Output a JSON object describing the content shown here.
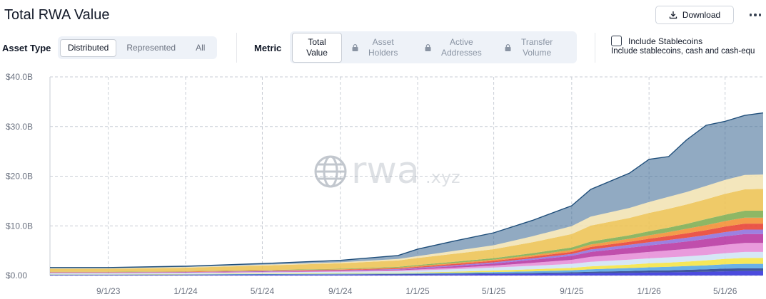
{
  "header": {
    "title": "Total RWA Value",
    "download_label": "Download"
  },
  "asset_type": {
    "label": "Asset Type",
    "options": [
      "Distributed",
      "Represented",
      "All"
    ],
    "selected": "Distributed"
  },
  "metric": {
    "label": "Metric",
    "options": [
      {
        "line1": "Total",
        "line2": "Value",
        "locked": false
      },
      {
        "line1": "Asset",
        "line2": "Holders",
        "locked": true
      },
      {
        "line1": "Active",
        "line2": "Addresses",
        "locked": true
      },
      {
        "line1": "Transfer",
        "line2": "Volume",
        "locked": true
      }
    ],
    "selected": "Total Value"
  },
  "stablecoins": {
    "label": "Include Stablecoins",
    "description": "Include stablecoins, cash and cash-equ",
    "checked": false
  },
  "watermark": {
    "text": "rwa",
    "suffix": ".xyz"
  },
  "chart_data": {
    "type": "area",
    "stacked": true,
    "ylim": [
      0,
      40
    ],
    "y_ticks": [
      {
        "value": 0,
        "label": "$0.00"
      },
      {
        "value": 10,
        "label": "$10.0B"
      },
      {
        "value": 20,
        "label": "$20.0B"
      },
      {
        "value": 30,
        "label": "$30.0B"
      },
      {
        "value": 40,
        "label": "$40.0B"
      }
    ],
    "xlim": [
      "2023-06-01",
      "2026-06-30"
    ],
    "x_ticks": [
      {
        "date": "2023-09-01",
        "label": "9/1/23"
      },
      {
        "date": "2024-01-01",
        "label": "1/1/24"
      },
      {
        "date": "2024-05-01",
        "label": "5/1/24"
      },
      {
        "date": "2024-09-01",
        "label": "9/1/24"
      },
      {
        "date": "2025-01-01",
        "label": "1/1/25"
      },
      {
        "date": "2025-05-01",
        "label": "5/1/25"
      },
      {
        "date": "2025-09-01",
        "label": "9/1/25"
      },
      {
        "date": "2026-01-01",
        "label": "1/1/26"
      },
      {
        "date": "2026-05-01",
        "label": "5/1/26"
      }
    ],
    "grid": true,
    "x": [
      "2023-06-01",
      "2023-09-01",
      "2024-01-01",
      "2024-05-01",
      "2024-09-01",
      "2024-12-01",
      "2025-01-01",
      "2025-03-01",
      "2025-05-01",
      "2025-07-01",
      "2025-09-01",
      "2025-10-01",
      "2025-12-01",
      "2026-01-01",
      "2026-02-01",
      "2026-03-01",
      "2026-04-01",
      "2026-05-01",
      "2026-06-01",
      "2026-06-30"
    ],
    "series": [
      {
        "color": "#2b2bd8",
        "values": [
          0.1,
          0.1,
          0.12,
          0.15,
          0.18,
          0.2,
          0.22,
          0.26,
          0.3,
          0.35,
          0.4,
          0.45,
          0.55,
          0.6,
          0.65,
          0.7,
          0.75,
          0.85,
          0.9,
          0.9
        ]
      },
      {
        "color": "#1f3a8a",
        "values": [
          0.05,
          0.05,
          0.06,
          0.07,
          0.08,
          0.1,
          0.1,
          0.12,
          0.15,
          0.2,
          0.25,
          0.3,
          0.35,
          0.4,
          0.4,
          0.45,
          0.5,
          0.55,
          0.55,
          0.55
        ]
      },
      {
        "color": "#4fa3e3",
        "values": [
          0.05,
          0.05,
          0.06,
          0.08,
          0.1,
          0.12,
          0.15,
          0.2,
          0.25,
          0.3,
          0.4,
          0.5,
          0.6,
          0.65,
          0.7,
          0.75,
          0.8,
          0.85,
          0.9,
          0.9
        ]
      },
      {
        "color": "#f4e33c",
        "values": [
          0.05,
          0.05,
          0.06,
          0.08,
          0.1,
          0.12,
          0.15,
          0.2,
          0.3,
          0.4,
          0.5,
          0.6,
          0.7,
          0.8,
          0.85,
          0.9,
          1.0,
          1.1,
          1.2,
          1.2
        ]
      },
      {
        "color": "#cfe3f5",
        "values": [
          0.2,
          0.2,
          0.22,
          0.25,
          0.3,
          0.35,
          0.4,
          0.5,
          0.6,
          0.7,
          0.8,
          0.9,
          1.0,
          1.0,
          1.05,
          1.05,
          1.1,
          1.15,
          1.2,
          1.2
        ]
      },
      {
        "color": "#e58ad6",
        "values": [
          0.05,
          0.05,
          0.06,
          0.08,
          0.1,
          0.15,
          0.2,
          0.3,
          0.4,
          0.6,
          0.8,
          1.0,
          1.2,
          1.3,
          1.4,
          1.5,
          1.6,
          1.7,
          1.8,
          1.8
        ]
      },
      {
        "color": "#b52f9e",
        "values": [
          0.05,
          0.05,
          0.06,
          0.08,
          0.1,
          0.15,
          0.2,
          0.3,
          0.4,
          0.6,
          0.8,
          1.0,
          1.2,
          1.3,
          1.4,
          1.5,
          1.6,
          1.7,
          1.8,
          1.8
        ]
      },
      {
        "color": "#8b6bdc",
        "values": [
          0.05,
          0.05,
          0.06,
          0.08,
          0.1,
          0.12,
          0.15,
          0.2,
          0.25,
          0.3,
          0.4,
          0.5,
          0.6,
          0.65,
          0.7,
          0.75,
          0.8,
          0.85,
          0.9,
          0.9
        ]
      },
      {
        "color": "#e73a2a",
        "values": [
          0.05,
          0.05,
          0.06,
          0.08,
          0.1,
          0.15,
          0.2,
          0.25,
          0.3,
          0.35,
          0.4,
          0.5,
          0.6,
          0.7,
          0.8,
          0.9,
          1.0,
          1.1,
          1.2,
          1.2
        ]
      },
      {
        "color": "#f28b2c",
        "values": [
          0.05,
          0.05,
          0.06,
          0.08,
          0.1,
          0.12,
          0.15,
          0.2,
          0.25,
          0.3,
          0.4,
          0.5,
          0.6,
          0.7,
          0.8,
          0.9,
          1.0,
          1.1,
          1.2,
          1.2
        ]
      },
      {
        "color": "#7aaa4a",
        "values": [
          0.05,
          0.05,
          0.06,
          0.08,
          0.1,
          0.15,
          0.2,
          0.25,
          0.3,
          0.4,
          0.5,
          0.6,
          0.7,
          0.8,
          0.9,
          1.0,
          1.2,
          1.3,
          1.4,
          1.4
        ]
      },
      {
        "color": "#ecc14d",
        "values": [
          0.6,
          0.6,
          0.7,
          0.9,
          1.1,
          1.3,
          1.4,
          1.6,
          1.8,
          2.2,
          2.7,
          3.2,
          3.5,
          3.7,
          3.8,
          3.9,
          4.0,
          4.2,
          4.3,
          4.4
        ]
      },
      {
        "color": "#f1e2b0",
        "values": [
          0.1,
          0.1,
          0.12,
          0.15,
          0.2,
          0.3,
          0.4,
          0.6,
          0.8,
          1.2,
          1.6,
          1.8,
          2.0,
          2.2,
          2.4,
          2.5,
          2.7,
          2.8,
          2.9,
          2.9
        ]
      },
      {
        "color": "#36648f",
        "values": [
          0.15,
          0.15,
          0.18,
          0.25,
          0.4,
          0.7,
          1.4,
          2.0,
          2.5,
          3.2,
          4.1,
          5.5,
          7.0,
          8.6,
          8.1,
          10.5,
          12.2,
          11.8,
          12.0,
          12.4
        ]
      }
    ]
  }
}
